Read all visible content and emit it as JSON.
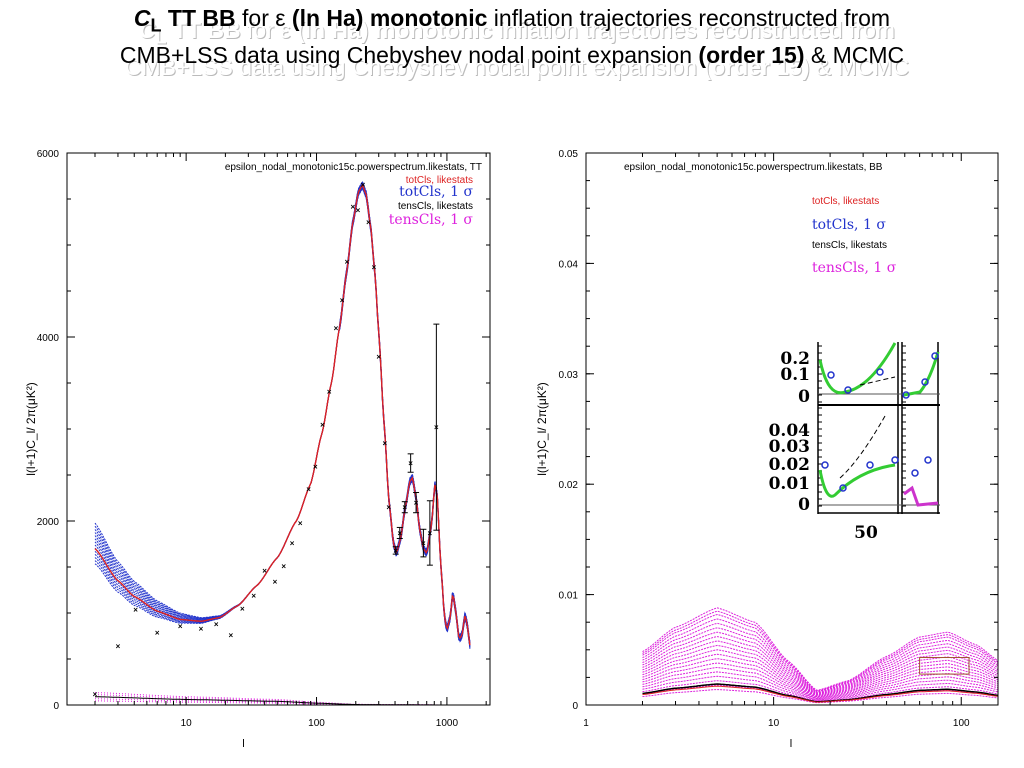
{
  "title": {
    "cl_symbol": "C",
    "cl_sub": "L",
    "part1_bold": "TT BB",
    "part2": "for",
    "epsilon": "ε",
    "part3_bold": "(ln Ha) monotonic",
    "part4": "inflation trajectories reconstructed from",
    "line2_a": "CMB+LSS data using Chebyshev nodal point expansion",
    "line2_bold": "(order 15)",
    "line2_b": "& MCMC"
  },
  "colors": {
    "totCls_best": "#dd2222",
    "totCls_sigma": "#2233cc",
    "tensCls_best": "#000000",
    "tensCls_sigma": "#dd22dd",
    "data": "#000000"
  },
  "chart_data": [
    {
      "type": "line",
      "title": "epsilon_nodal_monotonic15c.powerspectrum.likestats, TT",
      "xlabel": "l",
      "ylabel": "l(l+1)C_l/ 2π(μK²)",
      "xscale": "log",
      "xlim": [
        1.22,
        2140
      ],
      "ylim": [
        0,
        6000
      ],
      "xticks": [
        {
          "v": 10,
          "label": "10"
        },
        {
          "v": 100,
          "label": "100"
        },
        {
          "v": 1000,
          "label": "1000"
        }
      ],
      "yticks": [
        {
          "v": 0,
          "label": "0"
        },
        {
          "v": 2000,
          "label": "2000"
        },
        {
          "v": 4000,
          "label": "4000"
        },
        {
          "v": 6000,
          "label": "6000"
        }
      ],
      "legend": {
        "placement": "top-right",
        "entries": [
          {
            "label": "totCls, likestats",
            "color": "#dd2222",
            "style": "sans"
          },
          {
            "label": "totCls, 1 σ",
            "color": "#2233cc",
            "style": "mono"
          },
          {
            "label": "tensCls, likestats",
            "color": "#000000",
            "style": "sans"
          },
          {
            "label": "tensCls, 1 σ",
            "color": "#dd22dd",
            "style": "mono"
          }
        ]
      },
      "best_fit": {
        "l": [
          2,
          3,
          4,
          6,
          9,
          13,
          18,
          25,
          35,
          50,
          70,
          90,
          110,
          130,
          150,
          170,
          190,
          210,
          225,
          240,
          260,
          280,
          300,
          330,
          360,
          390,
          410,
          440,
          480,
          520,
          545,
          580,
          620,
          660,
          700,
          760,
          810,
          840,
          900,
          960,
          1000,
          1060,
          1110,
          1160,
          1240,
          1300,
          1380,
          1440,
          1500
        ],
        "C": [
          1700,
          1350,
          1180,
          1020,
          930,
          910,
          950,
          1080,
          1300,
          1600,
          2000,
          2400,
          2950,
          3500,
          4100,
          4700,
          5250,
          5580,
          5650,
          5550,
          5200,
          4700,
          4050,
          3050,
          2200,
          1750,
          1650,
          1800,
          2150,
          2430,
          2470,
          2250,
          1900,
          1700,
          1650,
          1950,
          2400,
          2300,
          1500,
          950,
          820,
          950,
          1220,
          1050,
          720,
          750,
          980,
          850,
          650
        ]
      },
      "sigma_spread_at_l2": [
        -250,
        420
      ],
      "tensor_best_fit": {
        "l": [
          2,
          10,
          50,
          100,
          200,
          1000,
          1500
        ],
        "C": [
          90,
          60,
          40,
          20,
          5,
          0,
          0
        ]
      },
      "data_points": {
        "l": [
          2,
          3,
          4.1,
          6,
          9,
          13,
          17,
          22,
          27,
          33,
          40,
          48,
          56,
          65,
          75,
          87,
          98,
          111,
          125,
          141,
          157,
          171,
          190,
          208,
          227,
          250,
          276,
          300,
          334,
          358,
          405,
          435,
          475,
          527,
          580,
          660,
          740,
          830
        ],
        "C": [
          120,
          640,
          1040,
          790,
          860,
          830,
          880,
          760,
          1050,
          1190,
          1460,
          1340,
          1510,
          1760,
          1980,
          2350,
          2590,
          3050,
          3410,
          4100,
          4400,
          4820,
          5420,
          5380,
          5660,
          5250,
          4760,
          3790,
          2850,
          2150,
          1680,
          1870,
          2150,
          2630,
          2200,
          1760,
          1870,
          3020
        ],
        "err": [
          0,
          0,
          0,
          0,
          0,
          0,
          0,
          0,
          0,
          0,
          0,
          0,
          0,
          0,
          0,
          0,
          0,
          0,
          0,
          0,
          0,
          0,
          0,
          0,
          0,
          0,
          0,
          0,
          0,
          0,
          40,
          60,
          60,
          100,
          110,
          150,
          350,
          1120
        ]
      }
    },
    {
      "type": "line",
      "title": "epsilon_nodal_monotonic15c.powerspectrum.likestats, BB",
      "xlabel": "l",
      "ylabel": "l(l+1)C_l/ 2π(μK²)",
      "xscale": "log",
      "xlim": [
        1,
        157
      ],
      "ylim": [
        0,
        0.05
      ],
      "xticks": [
        {
          "v": 1,
          "label": "1"
        },
        {
          "v": 10,
          "label": "10"
        },
        {
          "v": 100,
          "label": "100"
        }
      ],
      "yticks": [
        {
          "v": 0,
          "label": "0"
        },
        {
          "v": 0.01,
          "label": "0.01"
        },
        {
          "v": 0.02,
          "label": "0.02"
        },
        {
          "v": 0.03,
          "label": "0.03"
        },
        {
          "v": 0.04,
          "label": "0.04"
        },
        {
          "v": 0.05,
          "label": "0.05"
        }
      ],
      "legend": {
        "placement": "top-right",
        "entries": [
          {
            "label": "totCls, likestats",
            "color": "#dd2222",
            "style": "sans"
          },
          {
            "label": "totCls, 1 σ",
            "color": "#2233cc",
            "style": "mono"
          },
          {
            "label": "tensCls, likestats",
            "color": "#000000",
            "style": "sans"
          },
          {
            "label": "tensCls, 1 σ",
            "color": "#dd22dd",
            "style": "mono"
          }
        ]
      },
      "shape": {
        "l": [
          2,
          3,
          5,
          8,
          12,
          17,
          25,
          40,
          60,
          85,
          120,
          160
        ],
        "rel": [
          0.55,
          0.8,
          1.0,
          0.85,
          0.45,
          0.15,
          0.25,
          0.5,
          0.7,
          0.75,
          0.62,
          0.45
        ]
      },
      "best_fit_amplitude": 0.0019,
      "sigma_amplitudes": [
        0.0014,
        0.0018,
        0.0022,
        0.0026,
        0.003,
        0.0034,
        0.0038,
        0.0042,
        0.0046,
        0.005,
        0.0054,
        0.0058,
        0.0062,
        0.0066,
        0.007,
        0.0074,
        0.0078,
        0.0082,
        0.0085,
        0.0088
      ],
      "data_boxes": [
        {
          "l": [
            60,
            110
          ],
          "C": [
            0.0028,
            0.0043
          ]
        }
      ],
      "inset": {
        "upper_ticks": [
          "0.2",
          "0.1",
          "0"
        ],
        "lower_ticks": [
          "0.04",
          "0.03",
          "0.02",
          "0.01",
          "0"
        ],
        "x_tick": "50"
      }
    }
  ]
}
